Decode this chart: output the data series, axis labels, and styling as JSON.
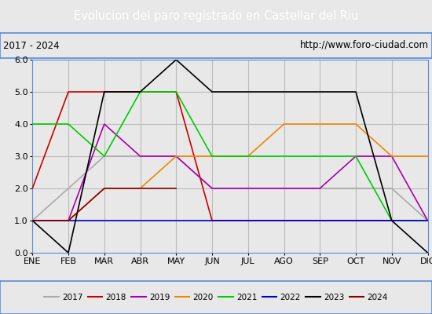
{
  "title": "Evolucion del paro registrado en Castellar del Riu",
  "subtitle_left": "2017 - 2024",
  "subtitle_right": "http://www.foro-ciudad.com",
  "xlabel_months": [
    "ENE",
    "FEB",
    "MAR",
    "ABR",
    "MAY",
    "JUN",
    "JUL",
    "AGO",
    "SEP",
    "OCT",
    "NOV",
    "DIC"
  ],
  "ylim": [
    0.0,
    6.0
  ],
  "yticks": [
    0.0,
    1.0,
    2.0,
    3.0,
    4.0,
    5.0,
    6.0
  ],
  "series": {
    "2017": {
      "color": "#aaaaaa",
      "values": [
        1,
        2,
        3,
        3,
        3,
        2,
        2,
        2,
        2,
        2,
        2,
        1
      ]
    },
    "2018": {
      "color": "#cc0000",
      "values": [
        2,
        5,
        5,
        5,
        5,
        1,
        1,
        1,
        1,
        1,
        1,
        1
      ]
    },
    "2019": {
      "color": "#aa00aa",
      "values": [
        1,
        1,
        4,
        3,
        3,
        2,
        2,
        2,
        2,
        3,
        3,
        1
      ]
    },
    "2020": {
      "color": "#ee8800",
      "values": [
        1,
        1,
        2,
        2,
        3,
        3,
        3,
        4,
        4,
        4,
        3,
        3
      ]
    },
    "2021": {
      "color": "#00cc00",
      "values": [
        4,
        4,
        3,
        5,
        5,
        3,
        3,
        3,
        3,
        3,
        1,
        1
      ]
    },
    "2022": {
      "color": "#0000cc",
      "values": [
        1,
        1,
        1,
        1,
        1,
        1,
        1,
        1,
        1,
        1,
        1,
        1
      ]
    },
    "2023": {
      "color": "#000000",
      "values": [
        1,
        0,
        5,
        5,
        6,
        5,
        5,
        5,
        5,
        5,
        1,
        0
      ]
    },
    "2024": {
      "color": "#880000",
      "values": [
        1,
        1,
        2,
        2,
        2,
        null,
        null,
        null,
        null,
        null,
        null,
        null
      ]
    }
  },
  "title_bg_color": "#5b8dd9",
  "title_text_color": "#ffffff",
  "subtitle_bg_color": "#e8e8e8",
  "plot_bg_color": "#e8e8e8",
  "grid_color": "#bbbbbb",
  "border_color": "#5b8dd9",
  "fig_width": 5.5,
  "fig_height": 4.0,
  "dpi": 100
}
